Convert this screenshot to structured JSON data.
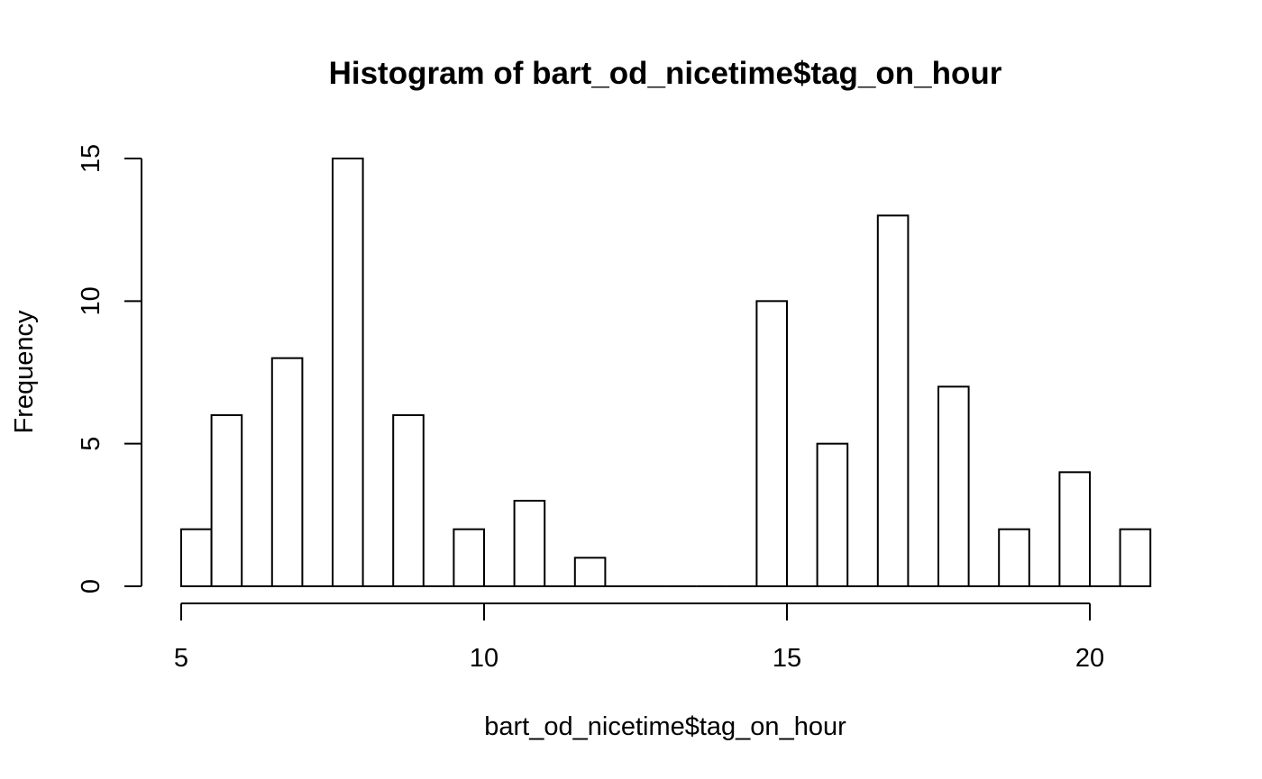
{
  "chart_data": {
    "type": "bar",
    "title": "Histogram of bart_od_nicetime$tag_on_hour",
    "xlabel": "bart_od_nicetime$tag_on_hour",
    "ylabel": "Frequency",
    "bin_width": 0.5,
    "bins": [
      {
        "start": 5.0,
        "end": 5.5,
        "count": 2
      },
      {
        "start": 5.5,
        "end": 6.0,
        "count": 6
      },
      {
        "start": 6.0,
        "end": 6.5,
        "count": 0
      },
      {
        "start": 6.5,
        "end": 7.0,
        "count": 8
      },
      {
        "start": 7.0,
        "end": 7.5,
        "count": 0
      },
      {
        "start": 7.5,
        "end": 8.0,
        "count": 15
      },
      {
        "start": 8.0,
        "end": 8.5,
        "count": 0
      },
      {
        "start": 8.5,
        "end": 9.0,
        "count": 6
      },
      {
        "start": 9.0,
        "end": 9.5,
        "count": 0
      },
      {
        "start": 9.5,
        "end": 10.0,
        "count": 2
      },
      {
        "start": 10.0,
        "end": 10.5,
        "count": 0
      },
      {
        "start": 10.5,
        "end": 11.0,
        "count": 3
      },
      {
        "start": 11.0,
        "end": 11.5,
        "count": 0
      },
      {
        "start": 11.5,
        "end": 12.0,
        "count": 1
      },
      {
        "start": 12.0,
        "end": 12.5,
        "count": 0
      },
      {
        "start": 12.5,
        "end": 13.0,
        "count": 0
      },
      {
        "start": 13.0,
        "end": 13.5,
        "count": 0
      },
      {
        "start": 13.5,
        "end": 14.0,
        "count": 0
      },
      {
        "start": 14.0,
        "end": 14.5,
        "count": 0
      },
      {
        "start": 14.5,
        "end": 15.0,
        "count": 10
      },
      {
        "start": 15.0,
        "end": 15.5,
        "count": 0
      },
      {
        "start": 15.5,
        "end": 16.0,
        "count": 5
      },
      {
        "start": 16.0,
        "end": 16.5,
        "count": 0
      },
      {
        "start": 16.5,
        "end": 17.0,
        "count": 13
      },
      {
        "start": 17.0,
        "end": 17.5,
        "count": 0
      },
      {
        "start": 17.5,
        "end": 18.0,
        "count": 7
      },
      {
        "start": 18.0,
        "end": 18.5,
        "count": 0
      },
      {
        "start": 18.5,
        "end": 19.0,
        "count": 2
      },
      {
        "start": 19.0,
        "end": 19.5,
        "count": 0
      },
      {
        "start": 19.5,
        "end": 20.0,
        "count": 4
      },
      {
        "start": 20.0,
        "end": 20.5,
        "count": 0
      },
      {
        "start": 20.5,
        "end": 21.0,
        "count": 2
      }
    ],
    "xlim": [
      5,
      21
    ],
    "ylim": [
      0,
      15
    ],
    "x_ticks": [
      5,
      10,
      15,
      20
    ],
    "y_ticks": [
      0,
      5,
      10,
      15
    ],
    "grid": false,
    "bar_fill": "#ffffff",
    "bar_stroke": "#000000"
  }
}
